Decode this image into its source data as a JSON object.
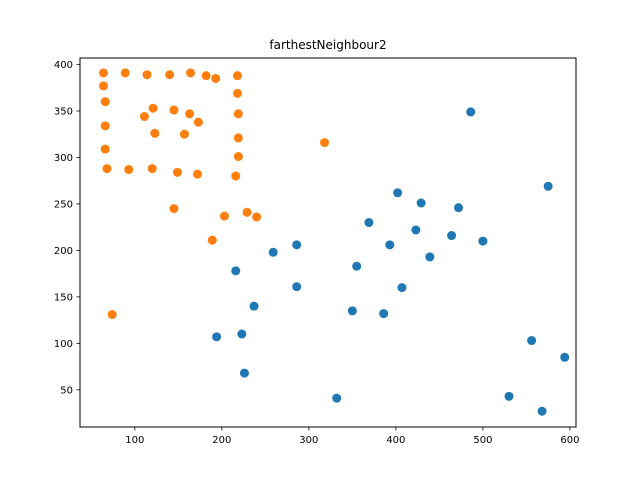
{
  "chart_data": {
    "type": "scatter",
    "title": "farthestNeighbour2",
    "xlabel": "",
    "ylabel": "",
    "xlim": [
      37,
      607
    ],
    "ylim": [
      10,
      407
    ],
    "xticks": [
      100,
      200,
      300,
      400,
      500,
      600
    ],
    "yticks": [
      50,
      100,
      150,
      200,
      250,
      300,
      350,
      400
    ],
    "grid": false,
    "series": [
      {
        "color": "#1f77b4",
        "points": [
          [
            486,
            349
          ],
          [
            575,
            269
          ],
          [
            402,
            262
          ],
          [
            429,
            251
          ],
          [
            472,
            246
          ],
          [
            369,
            230
          ],
          [
            423,
            222
          ],
          [
            464,
            216
          ],
          [
            500,
            210
          ],
          [
            286,
            206
          ],
          [
            393,
            206
          ],
          [
            259,
            198
          ],
          [
            439,
            193
          ],
          [
            355,
            183
          ],
          [
            216,
            178
          ],
          [
            286,
            161
          ],
          [
            407,
            160
          ],
          [
            237,
            140
          ],
          [
            350,
            135
          ],
          [
            386,
            132
          ],
          [
            194,
            107
          ],
          [
            223,
            110
          ],
          [
            556,
            103
          ],
          [
            594,
            85
          ],
          [
            226,
            68
          ],
          [
            332,
            41
          ],
          [
            530,
            43
          ],
          [
            568,
            27
          ]
        ]
      },
      {
        "color": "#ff7f0e",
        "points": [
          [
            64,
            391
          ],
          [
            89,
            391
          ],
          [
            114,
            389
          ],
          [
            140,
            389
          ],
          [
            164,
            391
          ],
          [
            182,
            388
          ],
          [
            193,
            385
          ],
          [
            218,
            388
          ],
          [
            64,
            377
          ],
          [
            218,
            369
          ],
          [
            66,
            360
          ],
          [
            121,
            353
          ],
          [
            145,
            351
          ],
          [
            163,
            347
          ],
          [
            219,
            347
          ],
          [
            111,
            344
          ],
          [
            173,
            338
          ],
          [
            66,
            334
          ],
          [
            123,
            326
          ],
          [
            157,
            325
          ],
          [
            219,
            321
          ],
          [
            318,
            316
          ],
          [
            66,
            309
          ],
          [
            219,
            301
          ],
          [
            68,
            288
          ],
          [
            93,
            287
          ],
          [
            120,
            288
          ],
          [
            149,
            284
          ],
          [
            172,
            282
          ],
          [
            216,
            280
          ],
          [
            229,
            241
          ],
          [
            145,
            245
          ],
          [
            240,
            236
          ],
          [
            203,
            237
          ],
          [
            189,
            211
          ],
          [
            74,
            131
          ]
        ]
      }
    ]
  }
}
